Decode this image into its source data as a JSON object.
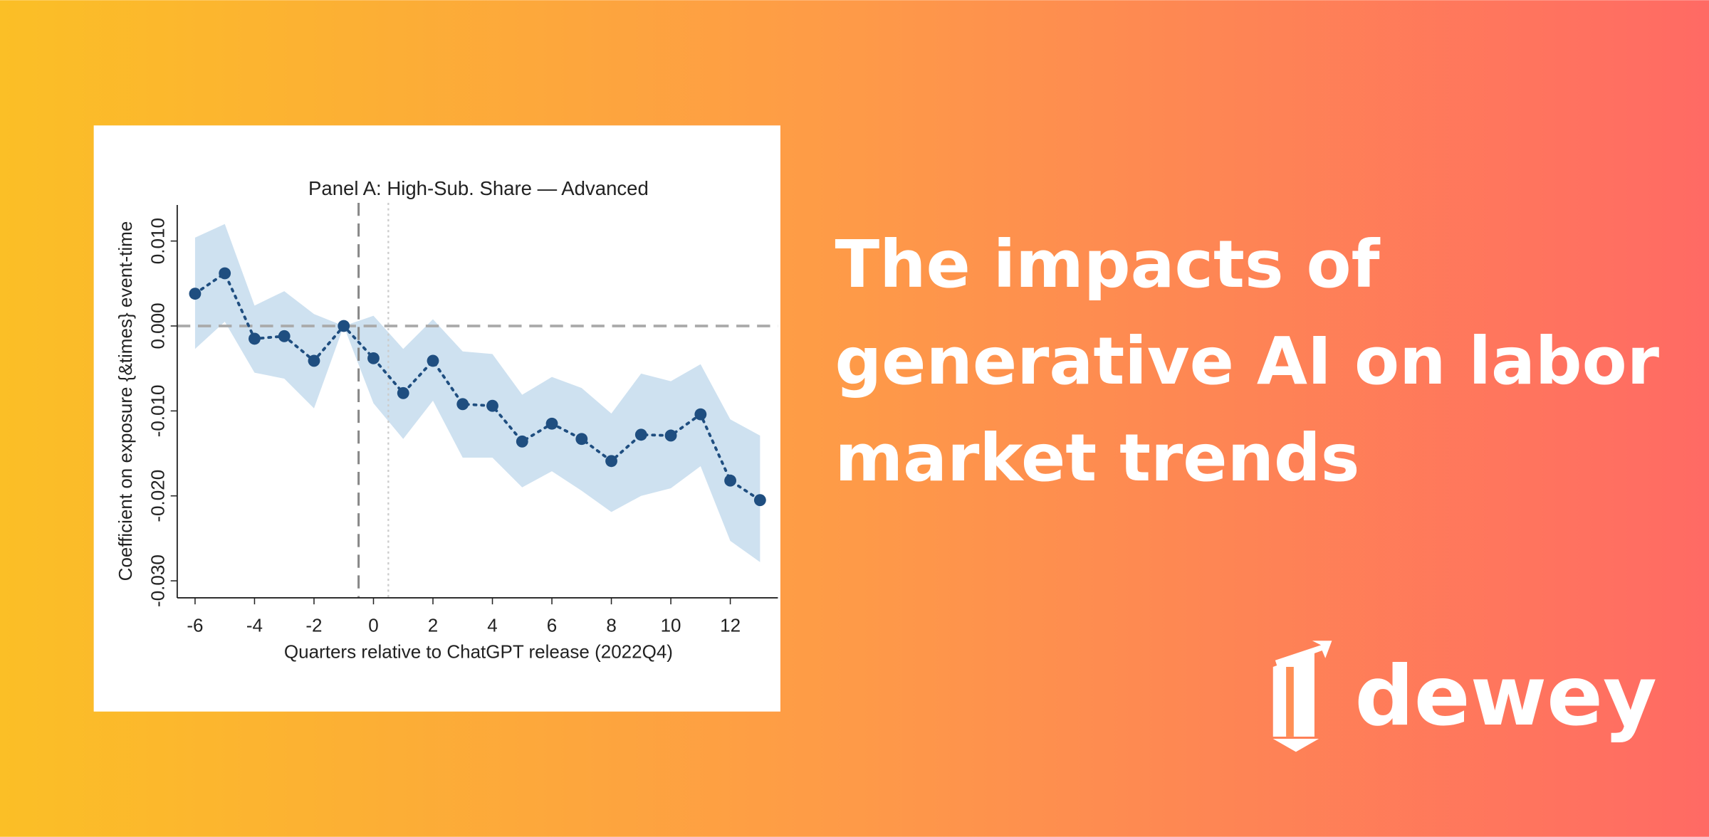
{
  "headline": [
    "The impacts of",
    "generative AI on labor",
    "market trends"
  ],
  "brand": "dewey",
  "chart_data": {
    "type": "line",
    "title": "Panel A: High-Sub. Share — Advanced",
    "xlabel": "Quarters relative to ChatGPT release (2022Q4)",
    "ylabel": "Coefficient on exposure {&times} event-time",
    "x": [
      -6,
      -5,
      -4,
      -3,
      -2,
      -1,
      0,
      1,
      2,
      3,
      4,
      5,
      6,
      7,
      8,
      9,
      10,
      11,
      12,
      13
    ],
    "values": [
      0.0038,
      0.0062,
      -0.0015,
      -0.0012,
      -0.0041,
      0,
      -0.0038,
      -0.0079,
      -0.0041,
      -0.0092,
      -0.0094,
      -0.0136,
      -0.0115,
      -0.0133,
      -0.0159,
      -0.0128,
      -0.0129,
      -0.0104,
      -0.0182,
      -0.0205
    ],
    "ci_upper": [
      0.0104,
      0.012,
      0.0024,
      0.0041,
      0.0014,
      0,
      0.0012,
      -0.0027,
      0.0008,
      -0.003,
      -0.0033,
      -0.0081,
      -0.006,
      -0.0073,
      -0.0103,
      -0.0056,
      -0.0065,
      -0.0045,
      -0.011,
      -0.0129
    ],
    "ci_lower": [
      -0.0027,
      0.0005,
      -0.0055,
      -0.0062,
      -0.0097,
      0,
      -0.0091,
      -0.0133,
      -0.0088,
      -0.0155,
      -0.0155,
      -0.019,
      -0.0171,
      -0.0194,
      -0.0219,
      -0.02,
      -0.0191,
      -0.0165,
      -0.0253,
      -0.0278
    ],
    "color": "#1f4e80",
    "band_color": "#c6dced",
    "xlim": [
      -6.6,
      13.6
    ],
    "ylim": [
      -0.032,
      0.0145
    ],
    "xticks": [
      -6,
      -4,
      -2,
      0,
      2,
      4,
      6,
      8,
      10,
      12
    ],
    "yticks": [
      {
        "value": 0.01,
        "label": "0.010"
      },
      {
        "value": 0,
        "label": "0.000"
      },
      {
        "value": -0.01,
        "label": "-0.010"
      },
      {
        "value": -0.02,
        "label": "-0.020"
      },
      {
        "value": -0.03,
        "label": "-0.030"
      }
    ],
    "hline": 0,
    "vline_dashed": -0.5,
    "vline_dotted": 0.5
  }
}
